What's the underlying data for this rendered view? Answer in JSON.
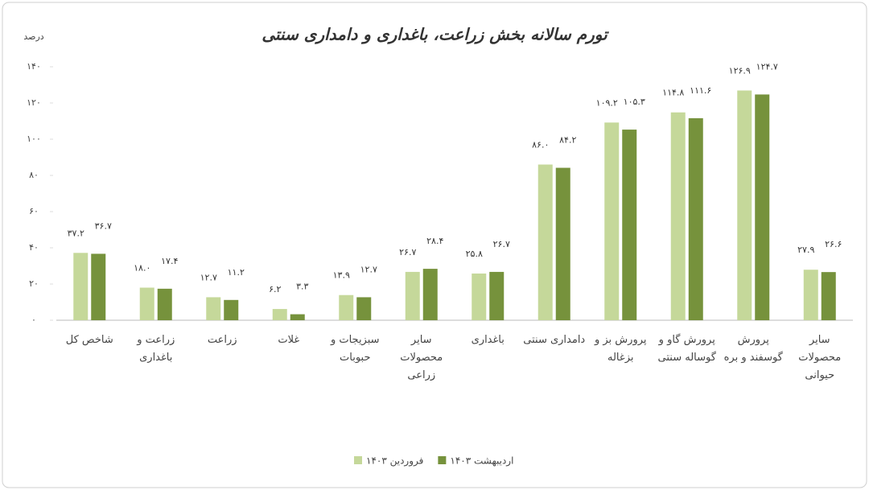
{
  "chart_data": {
    "type": "bar",
    "title": "تورم سالانه بخش زراعت، باغداری و دامداری سنتی",
    "y_label": "درصد",
    "categories": [
      "شاخص کل",
      "زراعت و باغداری",
      "زراعت",
      "غلات",
      "سبزیجات و حبوبات",
      "سایر محصولات زراعی",
      "باغداری",
      "دامداری سنتی",
      "پرورش بز و بزغاله",
      "پرورش گاو و گوساله سنتی",
      "پرورش گوسفند و بره",
      "سایر محصولات حیوانی"
    ],
    "series": [
      {
        "name": "فروردین ۱۴۰۳",
        "color": "#c5d89a",
        "values": [
          37.2,
          18.0,
          12.7,
          6.2,
          13.9,
          26.7,
          25.8,
          86.0,
          109.2,
          114.8,
          126.9,
          27.9
        ],
        "value_labels": [
          "۳۷.۲",
          "۱۸.۰",
          "۱۲.۷",
          "۶.۲",
          "۱۳.۹",
          "۲۶.۷",
          "۲۵.۸",
          "۸۶.۰",
          "۱۰۹.۲",
          "۱۱۴.۸",
          "۱۲۶.۹",
          "۲۷.۹"
        ]
      },
      {
        "name": "اردیبهشت ۱۴۰۳",
        "color": "#76923c",
        "values": [
          36.7,
          17.4,
          11.2,
          3.3,
          12.7,
          28.4,
          26.7,
          84.2,
          105.3,
          111.6,
          124.7,
          26.6
        ],
        "value_labels": [
          "۳۶.۷",
          "۱۷.۴",
          "۱۱.۲",
          "۳.۳",
          "۱۲.۷",
          "۲۸.۴",
          "۲۶.۷",
          "۸۴.۲",
          "۱۰۵.۳",
          "۱۱۱.۶",
          "۱۲۴.۷",
          "۲۶.۶"
        ]
      }
    ],
    "ylim": [
      0,
      140
    ],
    "yticks": [
      {
        "value": 0,
        "label": "۰"
      },
      {
        "value": 20,
        "label": "۲۰"
      },
      {
        "value": 40,
        "label": "۴۰"
      },
      {
        "value": 60,
        "label": "۶۰"
      },
      {
        "value": 80,
        "label": "۸۰"
      },
      {
        "value": 100,
        "label": "۱۰۰"
      },
      {
        "value": 120,
        "label": "۱۲۰"
      },
      {
        "value": 140,
        "label": "۱۴۰"
      }
    ],
    "legend": "bottom"
  }
}
